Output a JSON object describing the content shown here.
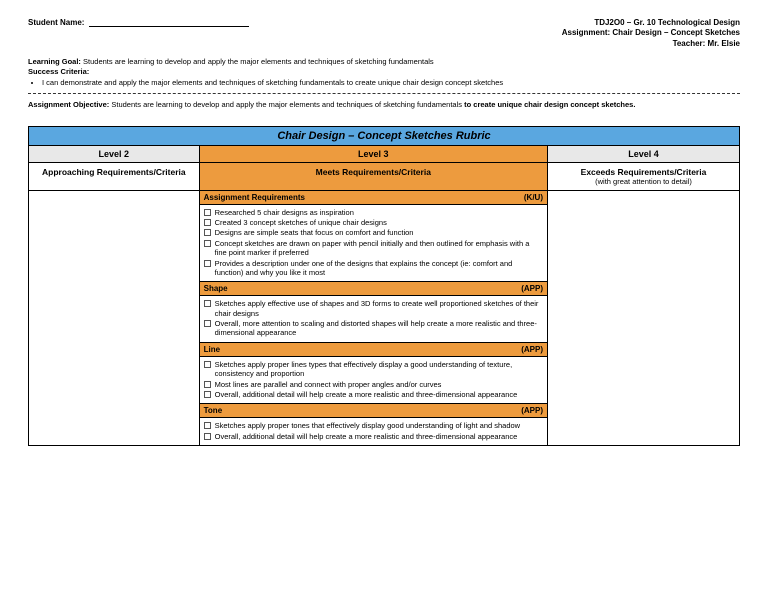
{
  "header": {
    "student_label": "Student Name:",
    "course": "TDJ2O0 – Gr. 10 Technological Design",
    "assignment": "Assignment: Chair Design – Concept Sketches",
    "teacher": "Teacher: Mr. Elsie"
  },
  "meta": {
    "learning_goal_label": "Learning Goal:",
    "learning_goal_text": "Students are learning to develop and apply the major elements and techniques of sketching fundamentals",
    "success_label": "Success Criteria:",
    "success_item": "I can demonstrate and apply the major elements and techniques of sketching fundamentals to create unique chair design concept sketches",
    "objective_label": "Assignment Objective:",
    "objective_text": "Students are learning to develop and apply the major elements and techniques of sketching fundamentals ",
    "objective_emph": "to create unique chair design concept sketches."
  },
  "rubric": {
    "title": "Chair Design – Concept Sketches Rubric",
    "levels": {
      "l2": "Level 2",
      "l3": "Level 3",
      "l4": "Level 4"
    },
    "reqs": {
      "l2": "Approaching Requirements/Criteria",
      "l3": "Meets Requirements/Criteria",
      "l4": "Exceeds Requirements/Criteria",
      "l4_sub": "(with great attention to detail)"
    },
    "sections": [
      {
        "name": "Assignment Requirements",
        "tag": "(K/U)",
        "items": [
          "Researched 5 chair designs as inspiration",
          "Created 3 concept sketches of unique chair designs",
          "Designs are simple seats that focus on comfort and function",
          "Concept sketches are drawn on paper with pencil initially and then outlined for emphasis with a fine point marker if preferred",
          "Provides a description under one of the designs that explains the concept (ie: comfort and function) and why you like it most"
        ]
      },
      {
        "name": "Shape",
        "tag": "(APP)",
        "items": [
          "Sketches apply effective use of shapes and 3D forms to create well proportioned sketches of their chair designs",
          "Overall, more attention to scaling and distorted shapes will help create a more realistic and three-dimensional appearance"
        ]
      },
      {
        "name": "Line",
        "tag": "(APP)",
        "items": [
          "Sketches apply proper lines types that effectively display a good understanding of texture, consistency and proportion",
          "Most lines are parallel and connect with proper angles and/or curves",
          "Overall, additional detail will help create a more realistic and three-dimensional appearance"
        ]
      },
      {
        "name": "Tone",
        "tag": "(APP)",
        "items": [
          "Sketches apply proper tones that effectively display good understanding of light and shadow",
          "Overall, additional detail will help create a more realistic and three-dimensional appearance"
        ]
      }
    ]
  }
}
